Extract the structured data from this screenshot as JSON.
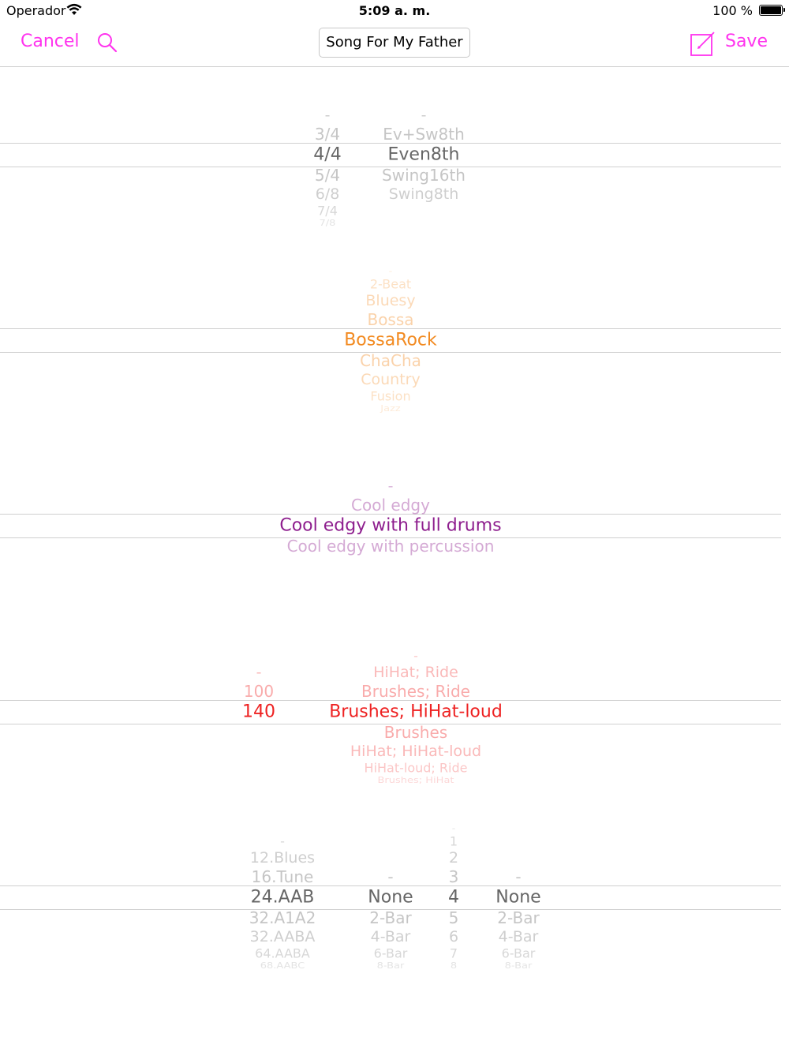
{
  "status_bar": {
    "carrier": "Operador",
    "time": "5:09 a. m.",
    "battery_percent": "100 %"
  },
  "navbar": {
    "cancel_label": "Cancel",
    "save_label": "Save",
    "song_title": "Song For My Father"
  },
  "pickers": [
    {
      "name": "time-signature-feel",
      "accent": "#666666",
      "columns": [
        {
          "name": "time-signature",
          "items": [
            "-",
            "3/4",
            "4/4",
            "5/4",
            "6/8",
            "7/4",
            "7/8"
          ],
          "selected": 2
        },
        {
          "name": "feel",
          "items": [
            "-",
            "Ev+Sw8th",
            "Even8th",
            "Swing16th",
            "Swing8th"
          ],
          "selected": 2,
          "offset_above": 2
        }
      ]
    },
    {
      "name": "style",
      "accent": "#f28a20",
      "columns": [
        {
          "name": "style",
          "items": [
            "-",
            "2-Beat",
            "Bluesy",
            "Bossa",
            "BossaRock",
            "ChaCha",
            "Country",
            "Fusion",
            "Jazz"
          ],
          "selected": 4
        }
      ]
    },
    {
      "name": "variation",
      "accent": "#8e1e8e",
      "columns": [
        {
          "name": "variation",
          "items": [
            "-",
            "Cool edgy",
            "Cool edgy with full drums",
            "Cool edgy with percussion"
          ],
          "selected": 2
        }
      ]
    },
    {
      "name": "tempo-drums",
      "accent": "#ee2222",
      "columns": [
        {
          "name": "tempo",
          "items": [
            "-",
            "100",
            "140"
          ],
          "selected": 2
        },
        {
          "name": "drum-kit",
          "items": [
            "-",
            "HiHat; Ride",
            "Brushes; Ride",
            "Brushes; HiHat-loud",
            "Brushes",
            "HiHat; HiHat-loud",
            "HiHat-loud; Ride",
            "Brushes; HiHat"
          ],
          "selected": 3
        }
      ]
    },
    {
      "name": "form",
      "accent": "#666666",
      "columns": [
        {
          "name": "form",
          "items": [
            "-",
            "12.Blues",
            "16.Tune",
            "24.AAB",
            "32.A1A2",
            "32.AABA",
            "64.AABA",
            "68.AABC"
          ],
          "selected": 3
        },
        {
          "name": "intro",
          "items": [
            "-",
            "None",
            "2-Bar",
            "4-Bar",
            "6-Bar",
            "8-Bar"
          ],
          "selected": 1
        },
        {
          "name": "repeats",
          "items": [
            "-",
            "1",
            "2",
            "3",
            "4",
            "5",
            "6",
            "7",
            "8"
          ],
          "selected": 4
        },
        {
          "name": "ending",
          "items": [
            "-",
            "None",
            "2-Bar",
            "4-Bar",
            "6-Bar",
            "8-Bar"
          ],
          "selected": 1
        }
      ]
    }
  ]
}
